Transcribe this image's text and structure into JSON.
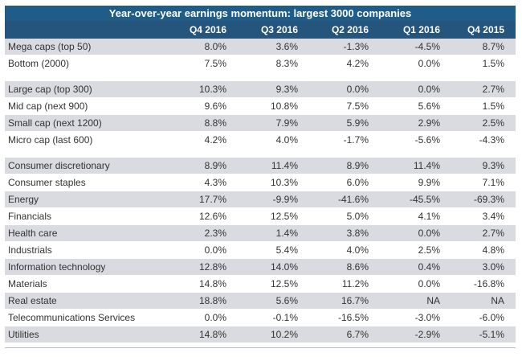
{
  "title": "Year-over-year earnings momentum: largest 3000 companies",
  "headers": [
    "Q4 2016",
    "Q3 2016",
    "Q2 2016",
    "Q1 2016",
    "Q4 2015"
  ],
  "groups": [
    {
      "rows": [
        {
          "label": "Mega caps (top 50)",
          "values": [
            "8.0%",
            "3.6%",
            "-1.3%",
            "-4.5%",
            "8.7%"
          ]
        },
        {
          "label": "Bottom (2000)",
          "values": [
            "7.5%",
            "8.3%",
            "4.2%",
            "0.0%",
            "1.5%"
          ]
        }
      ]
    },
    {
      "rows": [
        {
          "label": "Large cap (top 300)",
          "values": [
            "10.3%",
            "9.3%",
            "0.0%",
            "0.0%",
            "2.7%"
          ]
        },
        {
          "label": "Mid cap (next 900)",
          "values": [
            "9.6%",
            "10.8%",
            "7.5%",
            "5.6%",
            "1.5%"
          ]
        },
        {
          "label": "Small cap (next 1200)",
          "values": [
            "8.8%",
            "7.9%",
            "5.9%",
            "2.9%",
            "2.5%"
          ]
        },
        {
          "label": "Micro cap (last 600)",
          "values": [
            "4.2%",
            "4.0%",
            "-1.7%",
            "-5.6%",
            "-4.3%"
          ]
        }
      ]
    },
    {
      "rows": [
        {
          "label": "Consumer discretionary",
          "values": [
            "8.9%",
            "11.4%",
            "8.9%",
            "11.4%",
            "9.3%"
          ]
        },
        {
          "label": "Consumer staples",
          "values": [
            "4.3%",
            "10.3%",
            "6.0%",
            "9.9%",
            "7.1%"
          ]
        },
        {
          "label": "Energy",
          "values": [
            "17.7%",
            "-9.9%",
            "-41.6%",
            "-45.5%",
            "-69.3%"
          ]
        },
        {
          "label": "Financials",
          "values": [
            "12.6%",
            "12.5%",
            "5.0%",
            "4.1%",
            "3.4%"
          ]
        },
        {
          "label": "Health care",
          "values": [
            "2.3%",
            "1.4%",
            "3.8%",
            "0.0%",
            "2.7%"
          ]
        },
        {
          "label": "Industrials",
          "values": [
            "0.0%",
            "5.4%",
            "4.0%",
            "2.5%",
            "4.8%"
          ]
        },
        {
          "label": "Information technology",
          "values": [
            "12.8%",
            "14.0%",
            "8.6%",
            "0.4%",
            "3.0%"
          ]
        },
        {
          "label": "Materials",
          "values": [
            "14.8%",
            "12.5%",
            "11.2%",
            "0.0%",
            "-16.8%"
          ]
        },
        {
          "label": "Real estate",
          "values": [
            "18.8%",
            "5.6%",
            "16.7%",
            "NA",
            "NA"
          ]
        },
        {
          "label": "Telecommunications Services",
          "values": [
            "0.0%",
            "-0.1%",
            "-16.5%",
            "-3.0%",
            "-6.0%"
          ]
        },
        {
          "label": "Utilities",
          "values": [
            "14.8%",
            "10.2%",
            "6.7%",
            "-2.9%",
            "-5.1%"
          ]
        }
      ]
    }
  ]
}
